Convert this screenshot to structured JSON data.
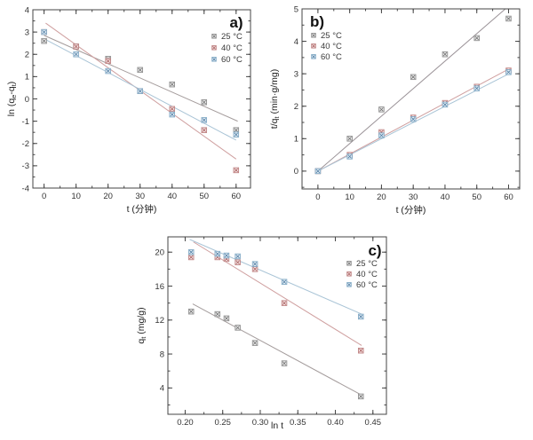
{
  "figure": {
    "background": "#ffffff",
    "axis_color": "#454545",
    "text_color": "#333333",
    "legend_text_color": "#3a3a3a"
  },
  "chart_data": [
    {
      "id": "a",
      "type": "scatter",
      "title": "a)",
      "xlabel": "t (分钟)",
      "ylabel_parts": [
        {
          "t": "ln (q"
        },
        {
          "t": "e",
          "sub": true
        },
        {
          "t": "-q"
        },
        {
          "t": "t",
          "sub": true
        },
        {
          "t": ")"
        }
      ],
      "xlim": [
        -3.5,
        64.5
      ],
      "ylim": [
        -4,
        4
      ],
      "xticks": [
        0,
        10,
        20,
        30,
        40,
        50,
        60
      ],
      "xtick_labels": [
        "0",
        "10",
        "20",
        "30",
        "40",
        "50",
        "60"
      ],
      "x_minor_step": 5,
      "yticks": [
        -4,
        -3,
        -2,
        -1,
        0,
        1,
        2,
        3,
        4
      ],
      "ytick_labels": [
        "-4",
        "-3",
        "-2",
        "-1",
        "0",
        "1",
        "2",
        "3",
        "4"
      ],
      "y_minor_step": 0.5,
      "legend_position": "top-right",
      "grid": false,
      "x": [
        0,
        10,
        20,
        30,
        40,
        50,
        60
      ],
      "series": [
        {
          "name": "25 °C",
          "marker_stroke": "#8f8f8f",
          "marker_fill": "#efefef",
          "marker_x": "#6e6e6e",
          "line_color": "#a49c9c",
          "values": [
            2.6,
            2.35,
            1.8,
            1.3,
            0.65,
            -0.15,
            -1.4
          ],
          "fit": {
            "x": [
              0,
              60.5
            ],
            "y": [
              2.85,
              -1.0
            ]
          }
        },
        {
          "name": "40 °C",
          "marker_stroke": "#bf8383",
          "marker_fill": "#f7e6e6",
          "marker_x": "#a85f5f",
          "line_color": "#cf9f9f",
          "values": [
            3.0,
            2.35,
            1.7,
            0.35,
            -0.45,
            -1.4,
            -3.2
          ],
          "fit": {
            "x": [
              0.5,
              60
            ],
            "y": [
              3.4,
              -2.7
            ]
          }
        },
        {
          "name": "60 °C",
          "marker_stroke": "#82aac6",
          "marker_fill": "#e6eff6",
          "marker_x": "#4f7da3",
          "line_color": "#a9c4d6",
          "values": [
            3.0,
            2.0,
            1.25,
            0.35,
            -0.7,
            -0.95,
            -1.6
          ],
          "fit": {
            "x": [
              0,
              60
            ],
            "y": [
              2.7,
              -1.85
            ]
          }
        }
      ]
    },
    {
      "id": "b",
      "type": "scatter",
      "title": "b)",
      "xlabel": "t (分钟)",
      "ylabel_parts": [
        {
          "t": "t/q"
        },
        {
          "t": "t",
          "sub": true
        },
        {
          "t": " (min·g/mg)"
        }
      ],
      "xlim": [
        -5,
        63.5
      ],
      "ylim": [
        -0.55,
        5
      ],
      "xticks": [
        0,
        10,
        20,
        30,
        40,
        50,
        60
      ],
      "xtick_labels": [
        "0",
        "10",
        "20",
        "30",
        "40",
        "50",
        "60"
      ],
      "x_minor_step": 5,
      "yticks": [
        0,
        1,
        2,
        3,
        4,
        5
      ],
      "ytick_labels": [
        "0",
        "1",
        "2",
        "3",
        "4",
        "5"
      ],
      "y_minor_step": 0.5,
      "legend_position": "top-left",
      "grid": false,
      "x": [
        0,
        10,
        20,
        30,
        40,
        50,
        60
      ],
      "series": [
        {
          "name": "25 °C",
          "marker_stroke": "#8f8f8f",
          "marker_fill": "#efefef",
          "marker_x": "#6e6e6e",
          "line_color": "#9b9398",
          "values": [
            0,
            1.0,
            1.9,
            2.9,
            3.6,
            4.1,
            4.7
          ],
          "fit": {
            "x": [
              0,
              59
            ],
            "y": [
              0,
              5.0
            ]
          }
        },
        {
          "name": "40 °C",
          "marker_stroke": "#bf8383",
          "marker_fill": "#f7e6e6",
          "marker_x": "#a85f5f",
          "line_color": "#cf9f9f",
          "values": [
            0,
            0.5,
            1.2,
            1.65,
            2.1,
            2.6,
            3.1
          ],
          "fit": {
            "x": [
              0,
              60.5
            ],
            "y": [
              0,
              3.17
            ]
          }
        },
        {
          "name": "60 °C",
          "marker_stroke": "#82aac6",
          "marker_fill": "#e6eff6",
          "marker_x": "#4f7da3",
          "line_color": "#a9c4d6",
          "values": [
            0,
            0.45,
            1.1,
            1.6,
            2.05,
            2.55,
            3.05
          ],
          "fit": {
            "x": [
              0,
              60.5
            ],
            "y": [
              0,
              3.02
            ]
          }
        }
      ]
    },
    {
      "id": "c",
      "type": "scatter",
      "title": "c)",
      "xlabel": "ln t",
      "ylabel_parts": [
        {
          "t": "q"
        },
        {
          "t": "t",
          "sub": true
        },
        {
          "t": " (mg/g)"
        }
      ],
      "xlim": [
        0.177,
        0.468
      ],
      "ylim": [
        0.9,
        21.8
      ],
      "xticks": [
        0.2,
        0.25,
        0.3,
        0.35,
        0.4,
        0.45
      ],
      "xtick_labels": [
        "0.20",
        "0.25",
        "0.30",
        "0.35",
        "0.40",
        "0.45"
      ],
      "x_minor_step": 0.025,
      "yticks": [
        4,
        8,
        12,
        16,
        20
      ],
      "ytick_labels": [
        "4",
        "8",
        "12",
        "16",
        "20"
      ],
      "y_minor_step": 2,
      "legend_position": "top-right",
      "grid": false,
      "x": [
        0.208,
        0.243,
        0.255,
        0.27,
        0.293,
        0.332,
        0.434
      ],
      "series": [
        {
          "name": "25 °C",
          "marker_stroke": "#8f8f8f",
          "marker_fill": "#efefef",
          "marker_x": "#6e6e6e",
          "line_color": "#a49c9c",
          "values": [
            13.0,
            12.7,
            12.2,
            11.1,
            9.3,
            6.9,
            3.0
          ],
          "fit": {
            "x": [
              0.21,
              0.434
            ],
            "y": [
              13.9,
              3.2
            ]
          }
        },
        {
          "name": "40 °C",
          "marker_stroke": "#bf8383",
          "marker_fill": "#f7e6e6",
          "marker_x": "#a85f5f",
          "line_color": "#cf9f9f",
          "values": [
            19.4,
            19.4,
            19.2,
            18.8,
            18.0,
            14.0,
            8.4
          ],
          "fit": {
            "x": [
              0.211,
              0.435
            ],
            "y": [
              21.2,
              9.0
            ]
          }
        },
        {
          "name": "60 °C",
          "marker_stroke": "#82aac6",
          "marker_fill": "#e6eff6",
          "marker_x": "#4f7da3",
          "line_color": "#a9c4d6",
          "values": [
            20.0,
            19.8,
            19.6,
            19.5,
            18.6,
            16.5,
            12.4
          ],
          "fit": {
            "x": [
              0.206,
              0.435
            ],
            "y": [
              21.5,
              12.7
            ]
          }
        }
      ]
    }
  ]
}
